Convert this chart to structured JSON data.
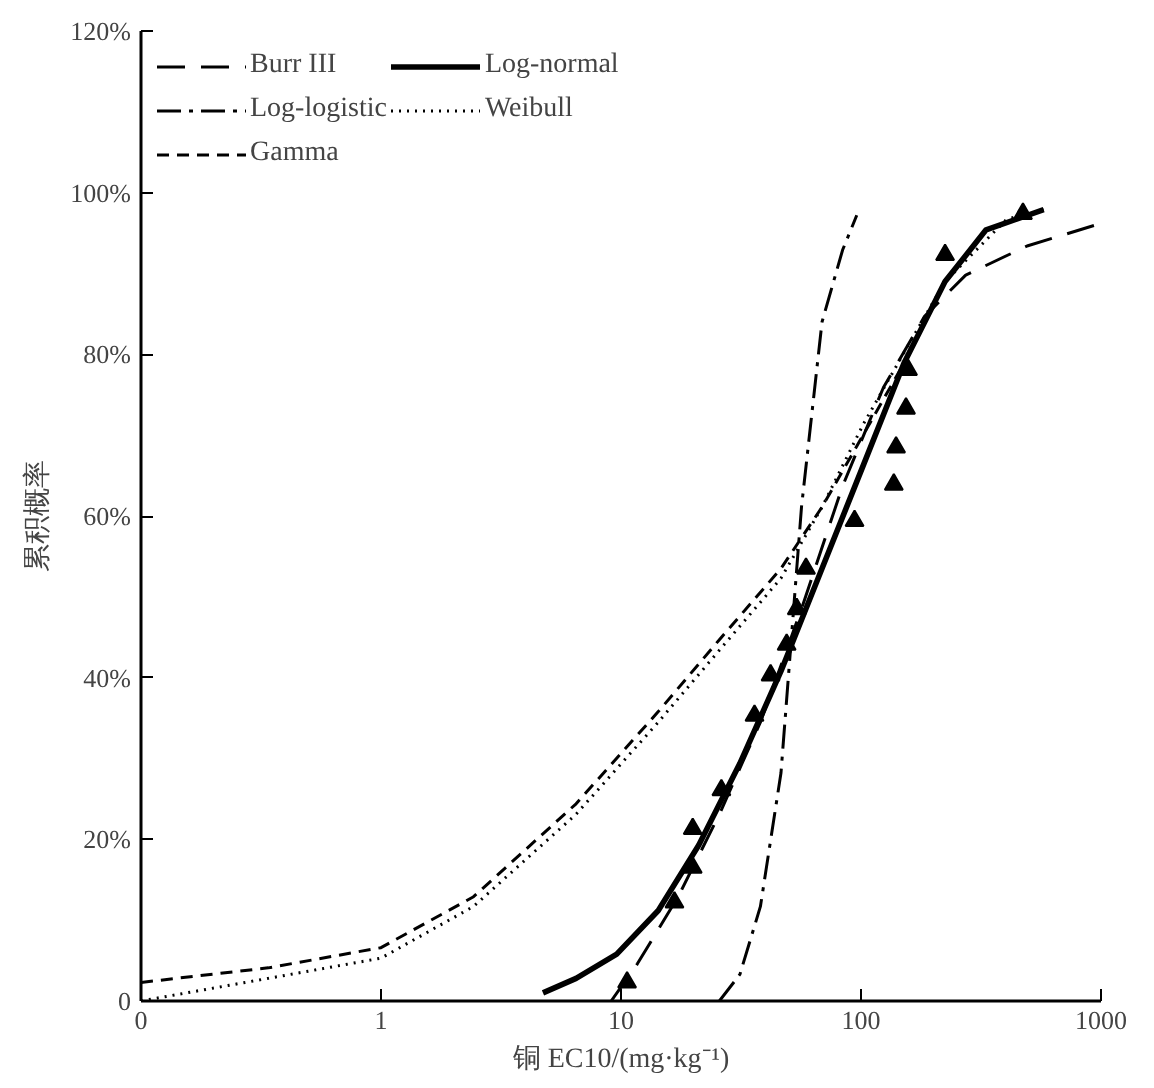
{
  "chart_data": {
    "type": "line",
    "xlabel": "铜 EC10/(mg·kg⁻¹)",
    "ylabel": "累积概率",
    "log": "x",
    "xlim": [
      0.1,
      1000
    ],
    "xticks": [
      {
        "value": 0.1,
        "label": "0"
      },
      1,
      10,
      100,
      1000
    ],
    "ylim": [
      0,
      120
    ],
    "yticks": [
      {
        "value": 0,
        "label": "0"
      },
      {
        "value": 20,
        "label": "20%"
      },
      {
        "value": 40,
        "label": "40%"
      },
      {
        "value": 60,
        "label": "60%"
      },
      {
        "value": 80,
        "label": "80%"
      },
      {
        "value": 100,
        "label": "100%"
      },
      {
        "value": 120,
        "label": "120%"
      }
    ],
    "grid": false,
    "legend": "top left",
    "series": [
      {
        "name": "Burr III",
        "color": "#000000",
        "line_style": "longdash",
        "x": [
          9.1,
          11.7,
          17.3,
          25.7,
          38.1,
          56.5,
          83.8,
          124,
          184,
          273,
          492,
          1000
        ],
        "values": [
          0,
          4.6,
          12.9,
          23.1,
          34.5,
          48.5,
          63.7,
          75.9,
          84.7,
          89.8,
          93.4,
          96.2
        ]
      },
      {
        "name": "Log-logistic",
        "color": "#000000",
        "line_style": "dashdot",
        "x": [
          25.7,
          31.3,
          38.1,
          46.4,
          56.5,
          68.8,
          83.8,
          96
        ],
        "values": [
          0,
          3.3,
          11.7,
          28.2,
          61.1,
          84.0,
          92.9,
          97.2
        ]
      },
      {
        "name": "Gamma",
        "color": "#000000",
        "line_style": "dashed",
        "x": [
          0.1,
          0.339,
          1,
          2.43,
          6.5,
          14.3,
          25.7,
          46.4,
          68.8,
          102,
          151,
          224,
          332,
          577
        ],
        "values": [
          2.3,
          4.1,
          6.6,
          12.9,
          24.4,
          35.8,
          44.7,
          53.5,
          61.1,
          70.0,
          78.9,
          89.0,
          95.4,
          97.9
        ]
      },
      {
        "name": "Log-normal",
        "color": "#000000",
        "line_style": "solid",
        "x": [
          4.73,
          6.5,
          9.6,
          14.3,
          21.1,
          31.3,
          46.4,
          68.8,
          102,
          151,
          224,
          332,
          577
        ],
        "values": [
          1.0,
          2.8,
          5.8,
          11.2,
          19.3,
          29.4,
          40.8,
          53.5,
          66.2,
          78.9,
          89.0,
          95.4,
          97.9
        ]
      },
      {
        "name": "Weibull",
        "color": "#000000",
        "line_style": "dotted",
        "x": [
          0.1,
          0.339,
          1,
          2.43,
          6.5,
          14.3,
          25.7,
          46.4,
          68.8,
          102,
          151,
          224,
          404,
          577
        ],
        "values": [
          0,
          2.8,
          5.3,
          11.7,
          23.1,
          34.5,
          43.4,
          52.3,
          61.1,
          71.3,
          80.2,
          89.0,
          96.7,
          97.9
        ]
      },
      {
        "type": "scatter",
        "color": "#000000",
        "marker": "triangle",
        "x": [
          10.6,
          16.7,
          19.9,
          19.9,
          26.2,
          36,
          42,
          49,
          54,
          59,
          94,
          137,
          140,
          154,
          157,
          224,
          473
        ],
        "values": [
          2.3,
          12.2,
          16.5,
          21.3,
          26.1,
          35.3,
          40.3,
          44.1,
          48.5,
          53.5,
          59.4,
          63.9,
          68.5,
          73.3,
          78.1,
          92.3,
          97.4
        ]
      }
    ]
  }
}
